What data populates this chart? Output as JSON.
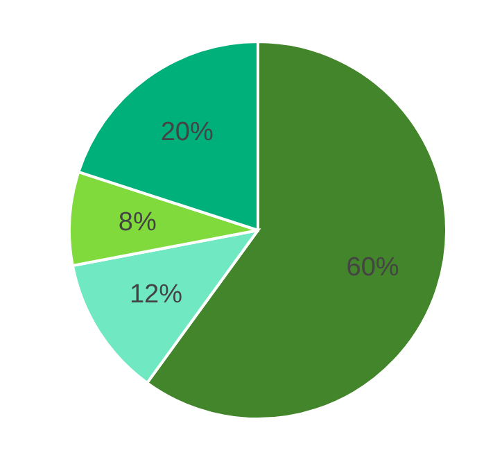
{
  "chart_data": {
    "type": "pie",
    "categories": [
      null,
      null,
      null,
      null
    ],
    "values": [
      60,
      12,
      8,
      20
    ],
    "colors": [
      "#43852b",
      "#70e8c2",
      "#80da3c",
      "#00b07b"
    ],
    "value_labels": [
      "60%",
      "12%",
      "8%",
      "20%"
    ]
  }
}
